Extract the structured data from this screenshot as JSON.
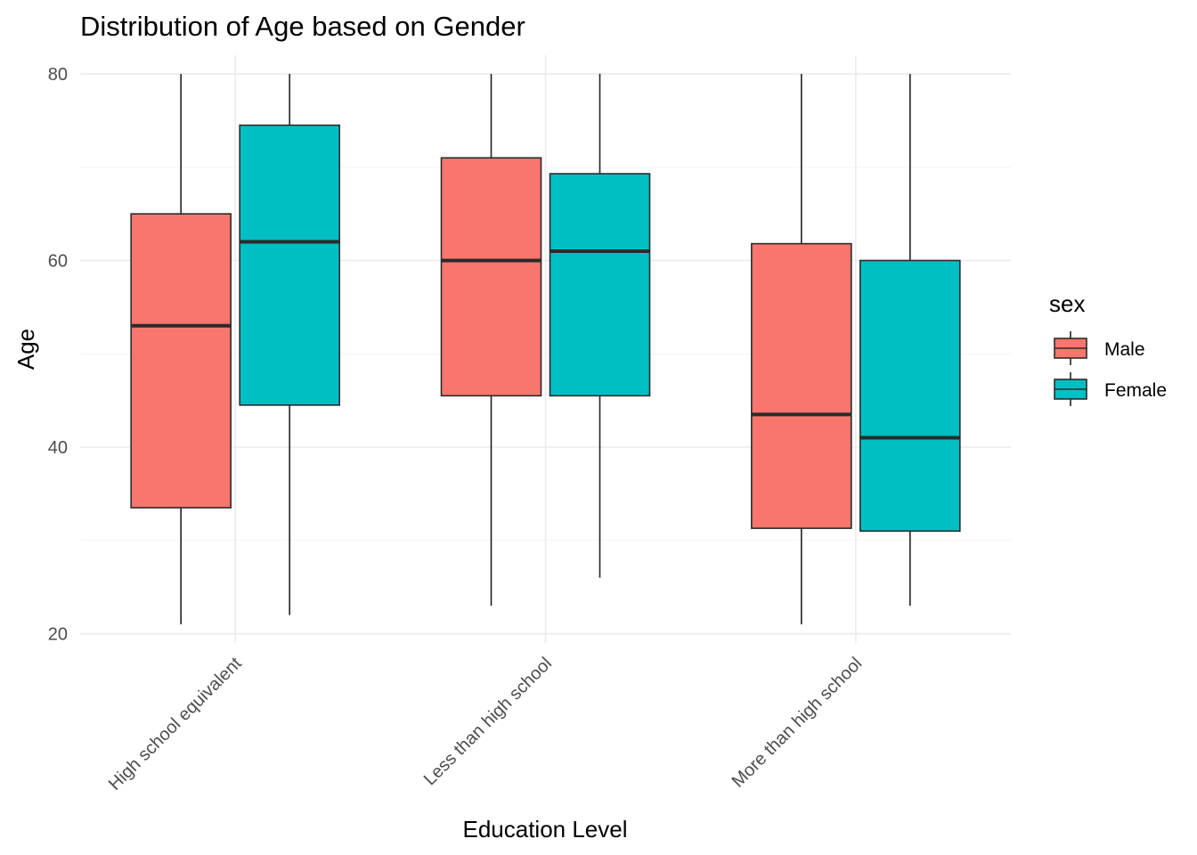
{
  "chart_data": {
    "type": "boxplot",
    "title": "Distribution of Age based on Gender",
    "xlabel": "Education Level",
    "ylabel": "Age",
    "ylim": [
      19,
      82
    ],
    "y_ticks": [
      20,
      40,
      60,
      80
    ],
    "categories": [
      "High school equivalent",
      "Less than high school",
      "More than high school"
    ],
    "legend": {
      "title": "sex",
      "position": "right"
    },
    "grid": true,
    "series": [
      {
        "name": "Male",
        "color": "#F8766D",
        "boxes": [
          {
            "min": 21,
            "q1": 33.5,
            "median": 53,
            "q3": 65,
            "max": 80
          },
          {
            "min": 23,
            "q1": 45.5,
            "median": 60,
            "q3": 71,
            "max": 80
          },
          {
            "min": 21,
            "q1": 31.3,
            "median": 43.5,
            "q3": 61.8,
            "max": 80
          }
        ]
      },
      {
        "name": "Female",
        "color": "#00BFC4",
        "boxes": [
          {
            "min": 22,
            "q1": 44.5,
            "median": 62,
            "q3": 74.5,
            "max": 80
          },
          {
            "min": 26,
            "q1": 45.5,
            "median": 61,
            "q3": 69.3,
            "max": 80
          },
          {
            "min": 23,
            "q1": 31,
            "median": 41,
            "q3": 60,
            "max": 80
          }
        ]
      }
    ]
  }
}
